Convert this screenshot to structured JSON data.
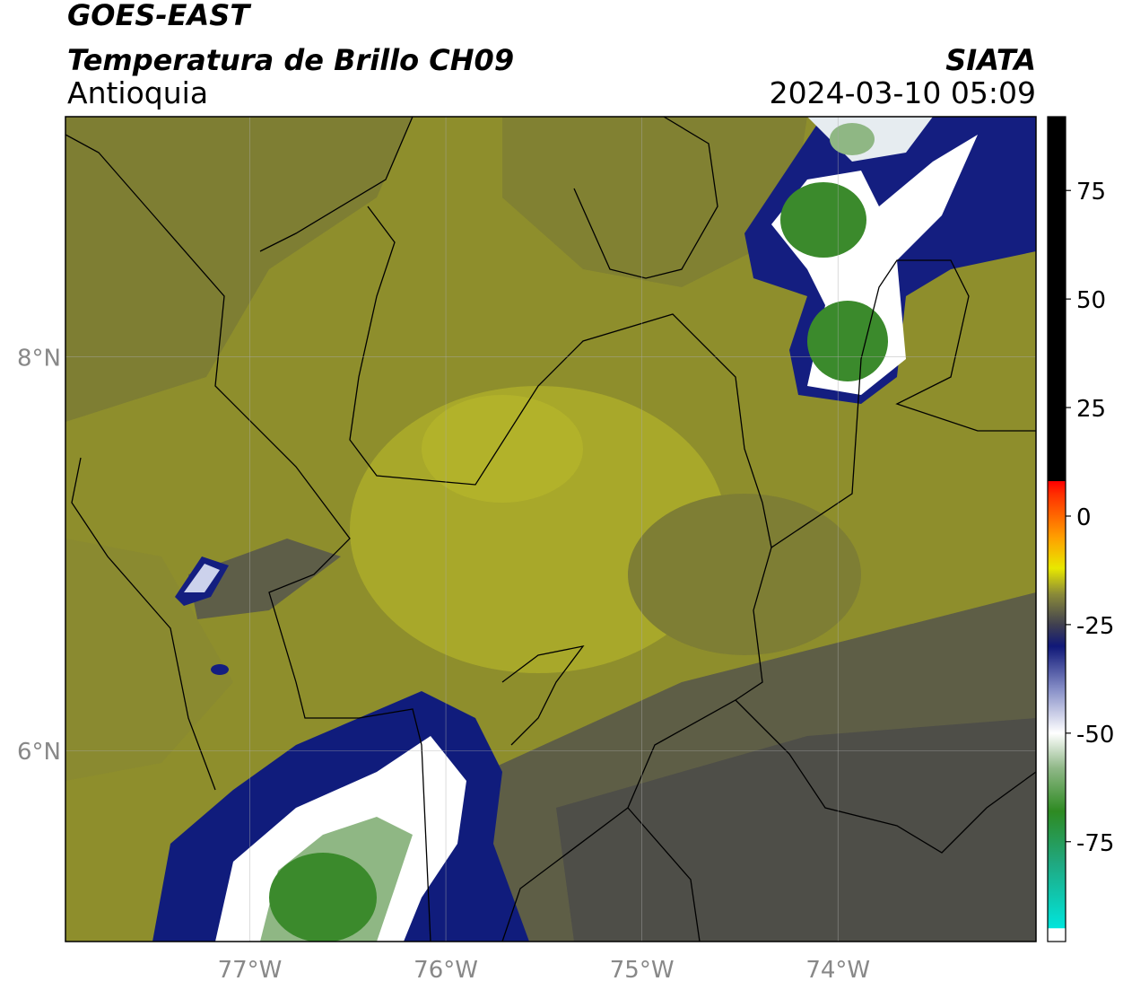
{
  "chart_data": {
    "type": "map",
    "title": "GOES-EAST",
    "subtitle": "Temperatura de Brillo CH09",
    "region": "Antioquia",
    "source": "SIATA",
    "timestamp": "2024-03-10 05:09",
    "xlim": [
      -77.94,
      -72.99
    ],
    "ylim": [
      5.03,
      9.22
    ],
    "xticks": [
      {
        "value": -77,
        "label": "77°W"
      },
      {
        "value": -76,
        "label": "76°W"
      },
      {
        "value": -75,
        "label": "75°W"
      },
      {
        "value": -74,
        "label": "74°W"
      }
    ],
    "yticks": [
      {
        "value": 6,
        "label": "6°N"
      },
      {
        "value": 8,
        "label": "8°N"
      }
    ],
    "grid": true,
    "colorbar": {
      "clim": [
        -98,
        92
      ],
      "ticks": [
        -75,
        -50,
        -25,
        0,
        25,
        50,
        75
      ],
      "colormap": [
        {
          "value": -98,
          "color": "#ffffff"
        },
        {
          "value": -95,
          "color": "#ffffff"
        },
        {
          "value": -94.9,
          "color": "#00e5dc"
        },
        {
          "value": -80,
          "color": "#20a880"
        },
        {
          "value": -68,
          "color": "#2e8a22"
        },
        {
          "value": -58,
          "color": "#90b888"
        },
        {
          "value": -50,
          "color": "#ffffff"
        },
        {
          "value": -40,
          "color": "#8890c8"
        },
        {
          "value": -30,
          "color": "#101878"
        },
        {
          "value": -25,
          "color": "#404050"
        },
        {
          "value": -18,
          "color": "#8a8a38"
        },
        {
          "value": -12,
          "color": "#e8e800"
        },
        {
          "value": -5,
          "color": "#ffa000"
        },
        {
          "value": 5,
          "color": "#ff3000"
        },
        {
          "value": 8,
          "color": "#ff0000"
        },
        {
          "value": 8.1,
          "color": "#000000"
        },
        {
          "value": 92,
          "color": "#000000"
        }
      ]
    }
  }
}
